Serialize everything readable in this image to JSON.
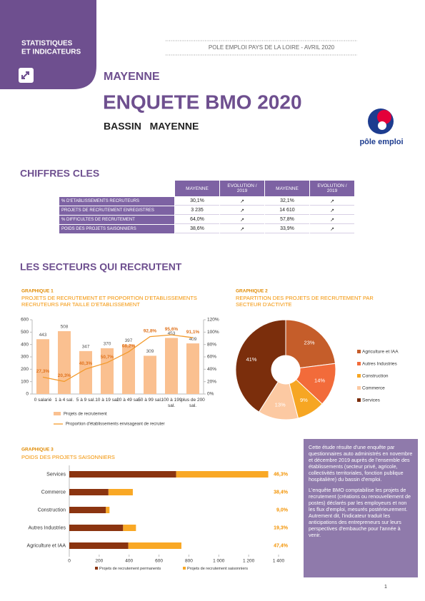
{
  "header": {
    "badge": [
      "STATISTIQUES",
      "ET INDICATEURS"
    ],
    "source": "POLE EMPLOI PAYS DE LA LOIRE - AVRIL 2020",
    "region": "MAYENNE",
    "title": "ENQUETE BMO 2020",
    "subtitle": "BASSIN   MAYENNE",
    "logo": "pôle emploi"
  },
  "key_figures": {
    "title": "CHIFFRES CLES",
    "columns": [
      "MAYENNE",
      "EVOLUTION / 2019",
      "MAYENNE",
      "EVOLUTION / 2019"
    ],
    "rows": [
      {
        "label": "% D'ETABLISSEMENTS RECRUTEURS",
        "cells": [
          "30,1%",
          "↗",
          "32,1%",
          "↗"
        ]
      },
      {
        "label": "PROJETS DE RECRUTEMENT ENREGISTRES",
        "cells": [
          "3 235",
          "↗",
          "14 610",
          "↗"
        ]
      },
      {
        "label": "% DIFFICULTES DE RECRUTEMENT",
        "cells": [
          "64,0%",
          "↗",
          "57,8%",
          "↗"
        ]
      },
      {
        "label": "POIDS DES PROJETS SAISONNIERS",
        "cells": [
          "38,6%",
          "↗",
          "33,9%",
          "↗"
        ]
      }
    ]
  },
  "section_title": "LES SECTEURS QUI RECRUTENT",
  "chart_data": [
    {
      "type": "combo",
      "label": "GRAPHIQUE 1",
      "title": "PROJETS DE RECRUTEMENT ET PROPORTION D'ETABLISSEMENTS RECRUTEURS PAR TAILLE D'ETABLISSEMENT",
      "categories": [
        "0 salarié",
        "1 à 4 sal.",
        "5 à 9 sal.",
        "10 à 19 sal.",
        "20 à 49 sal.",
        "50 à 99 sal.",
        "100 à 199 sal.",
        "plus de 200 sal."
      ],
      "series": [
        {
          "name": "Projets de recrutement",
          "color": "#fac090",
          "values": [
            443,
            508,
            347,
            370,
            397,
            309,
            453,
            409
          ]
        },
        {
          "name": "Proportion d'établissements envisageant de recruter",
          "color": "#f39a2c",
          "axis": "y2",
          "values": [
            27.3,
            20.3,
            40.3,
            50.7,
            68.2,
            92.8,
            95.6,
            91.1
          ],
          "value_labels": [
            "27,3%",
            "20,3%",
            "40,3%",
            "50,7%",
            "68,2%",
            "92,8%",
            "95,6%",
            "91,1%"
          ]
        }
      ],
      "ylim": [
        0,
        600
      ],
      "yticks": [
        0,
        100,
        200,
        300,
        400,
        500,
        600
      ],
      "y2lim": [
        0,
        120
      ],
      "y2ticks": [
        {
          "value": 0,
          "label": "0%"
        },
        {
          "value": 20,
          "label": "20%"
        },
        {
          "value": 40,
          "label": "40%"
        },
        {
          "value": 60,
          "label": "60%"
        },
        {
          "value": 80,
          "label": "80%"
        },
        {
          "value": 100,
          "label": "100%"
        },
        {
          "value": 120,
          "label": "120%"
        }
      ]
    },
    {
      "type": "donut",
      "label": "GRAPHIQUE 2",
      "title": "REPARTITION DES PROJETS DE RECRUTEMENT PAR SECTEUR D'ACTIVITE",
      "categories": [
        "Agriculture et IAA",
        "Autres Industries",
        "Construction",
        "Commerce",
        "Services"
      ],
      "values": [
        23,
        14,
        9,
        13,
        41
      ],
      "value_labels": [
        "23%",
        "14%",
        "9%",
        "13%",
        "41%"
      ],
      "colors": [
        "#c55d2a",
        "#f26b3a",
        "#f6a623",
        "#fcc9a2",
        "#7b2e0c"
      ]
    },
    {
      "type": "stacked_barh",
      "label": "GRAPHIQUE 3",
      "title": "POIDS DES PROJETS SAISONNIERS",
      "categories": [
        "Services",
        "Commerce",
        "Construction",
        "Autres Industries",
        "Agriculture et IAA"
      ],
      "series": [
        {
          "name": "Projets de recrutement permanents",
          "color": "#8b3410",
          "values": [
            715,
            262,
            245,
            360,
            395
          ]
        },
        {
          "name": "Projets de recrutement saisonniers",
          "color": "#f9a825",
          "values": [
            616,
            163,
            24,
            86,
            355
          ]
        }
      ],
      "seasonal_share": {
        "values": [
          46.3,
          38.4,
          9.0,
          19.3,
          47.4
        ],
        "value_labels": [
          "46,3%",
          "38,4%",
          "9,0%",
          "19,3%",
          "47,4%"
        ]
      },
      "xlim": [
        0,
        1400
      ],
      "xticks": [
        0,
        200,
        400,
        600,
        800,
        {
          "value": 1000,
          "label": "1 000"
        },
        {
          "value": 1200,
          "label": "1 200"
        },
        {
          "value": 1400,
          "label": "1 400"
        }
      ]
    }
  ],
  "note": {
    "paragraphs": [
      "Cette étude résulte d'une enquête par questionnaires auto administrés en novembre et décembre 2019 auprès de l'ensemble des établissements (secteur privé, agricole, collectivités territoriales, fonction publique hospitalière) du bassin d'emploi.",
      "L'enquête BMO comptabilise les projets de recrutement (créations ou renouvellement de postes) déclarés par les employeurs et non les flux d'emploi, mesurés postérieurement. Autrement dit, l'indicateur traduit les anticipations des entrepreneurs sur leurs perspectives d'embauche pour l'année à venir."
    ]
  },
  "page_number": "1"
}
